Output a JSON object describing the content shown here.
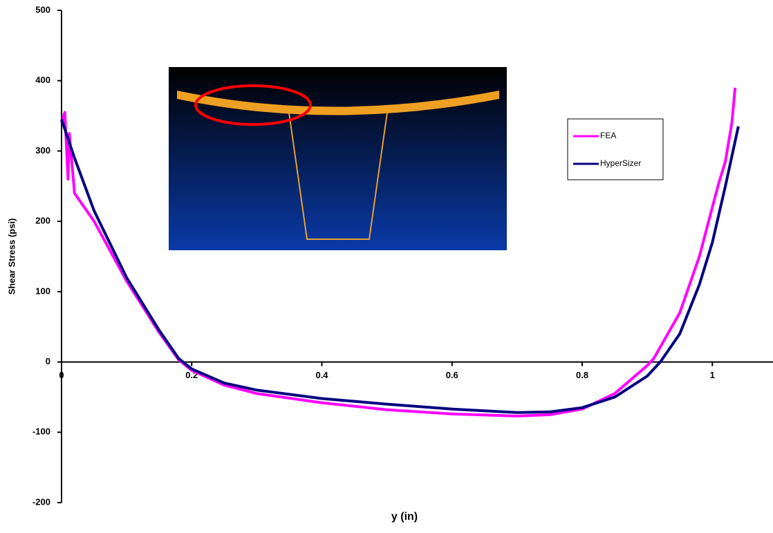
{
  "chart_data": {
    "type": "line",
    "xlabel": "y (in)",
    "ylabel": "Shear Stress (psi)",
    "xlim": [
      0,
      1.09
    ],
    "xticks": [
      0,
      0.2,
      0.4,
      0.6,
      0.8,
      1
    ],
    "ylim": [
      -200,
      500
    ],
    "yticks": [
      -200,
      -100,
      0,
      100,
      200,
      300,
      400,
      500
    ],
    "legend": "right",
    "series": [
      {
        "name": "FEA",
        "color": "#ff00ff",
        "x": [
          0,
          0.005,
          0.01,
          0.012,
          0.02,
          0.05,
          0.1,
          0.15,
          0.18,
          0.2,
          0.25,
          0.3,
          0.4,
          0.5,
          0.6,
          0.7,
          0.75,
          0.8,
          0.85,
          0.9,
          0.91,
          0.95,
          0.98,
          1.0,
          1.01,
          1.02,
          1.03,
          1.035
        ],
        "values": [
          340,
          355,
          260,
          325,
          240,
          200,
          115,
          42,
          3,
          -12,
          -33,
          -45,
          -58,
          -68,
          -74,
          -77,
          -75,
          -67,
          -45,
          -5,
          5,
          70,
          150,
          220,
          255,
          285,
          340,
          390
        ]
      },
      {
        "name": "HyperSizer",
        "color": "#000080",
        "x": [
          0,
          0.02,
          0.05,
          0.1,
          0.15,
          0.18,
          0.2,
          0.25,
          0.3,
          0.4,
          0.5,
          0.6,
          0.7,
          0.75,
          0.8,
          0.85,
          0.9,
          0.92,
          0.95,
          0.98,
          1.0,
          1.02,
          1.04
        ],
        "values": [
          345,
          290,
          215,
          120,
          45,
          5,
          -10,
          -30,
          -40,
          -52,
          -60,
          -67,
          -72,
          -71,
          -65,
          -50,
          -20,
          0,
          40,
          110,
          170,
          250,
          335
        ]
      }
    ]
  }
}
